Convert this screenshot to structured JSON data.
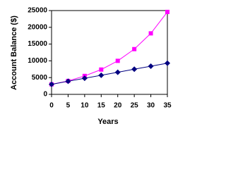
{
  "chart_data": {
    "type": "line",
    "x_label": "Years",
    "y_label": "Account Balance ($)",
    "x": [
      0,
      5,
      10,
      15,
      20,
      25,
      30,
      35
    ],
    "series": [
      {
        "color": "#ff00ff",
        "marker": "square",
        "values": [
          3000,
          4000,
          5500,
          7400,
          10000,
          13500,
          18200,
          24600
        ]
      },
      {
        "color": "#000080",
        "marker": "diamond",
        "values": [
          3000,
          3900,
          4800,
          5700,
          6600,
          7500,
          8400,
          9300
        ]
      }
    ],
    "xlim": [
      0,
      35
    ],
    "xticks": [
      0,
      5,
      10,
      15,
      20,
      25,
      30,
      35
    ],
    "ylim": [
      0,
      25000
    ],
    "yticks": [
      0,
      5000,
      10000,
      15000,
      20000,
      25000
    ],
    "grid": false
  }
}
